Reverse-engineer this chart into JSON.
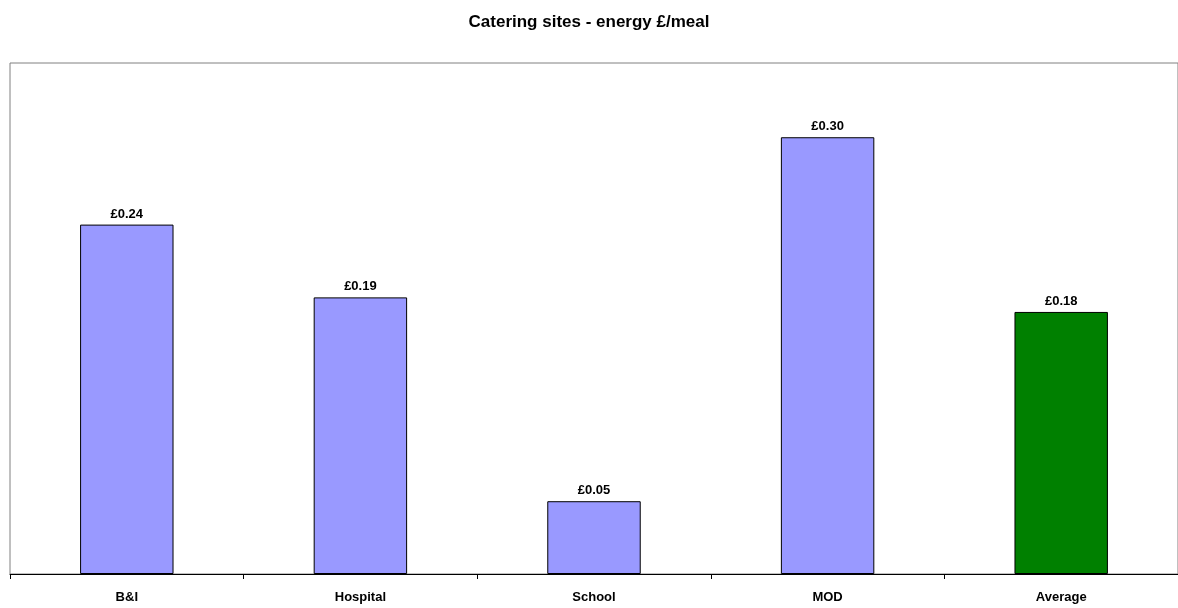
{
  "chart_data": {
    "type": "bar",
    "title": "Catering sites - energy £/meal",
    "categories": [
      "B&I",
      "Hospital",
      "School",
      "MOD",
      "Average"
    ],
    "values": [
      0.24,
      0.19,
      0.05,
      0.3,
      0.18
    ],
    "colors": [
      "#9999ff",
      "#9999ff",
      "#9999ff",
      "#9999ff",
      "#008000"
    ],
    "value_labels": [
      "£0.24",
      "£0.19",
      "£0.05",
      "£0.30",
      "£0.18"
    ]
  }
}
